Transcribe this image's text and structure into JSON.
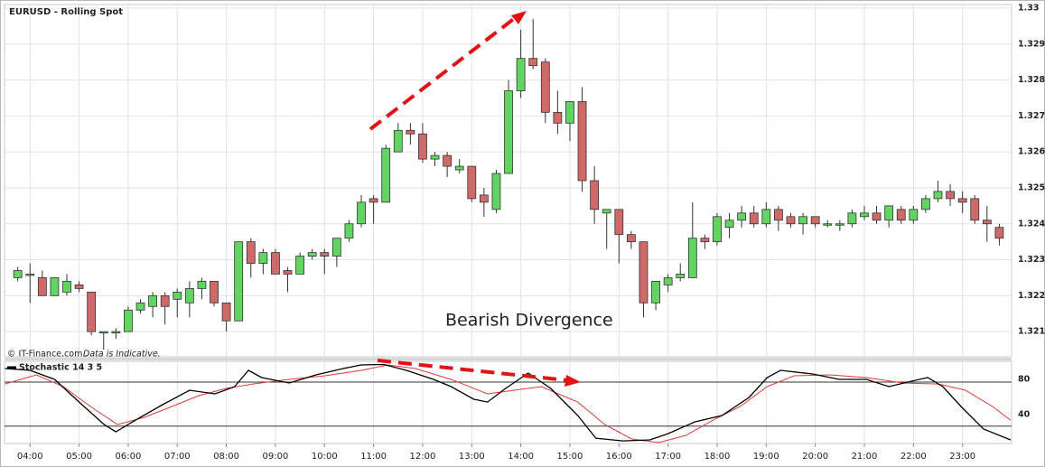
{
  "chart_data": [
    {
      "type": "candlestick",
      "title": "EURUSD - Rolling Spot",
      "annotation": "Bearish Divergence",
      "source": "© IT-Finance.com",
      "note": "Data is Indicative.",
      "up_color": "#62d462",
      "down_color": "#cf6a6a",
      "grid": true,
      "xlim": [
        3.48,
        24.0
      ],
      "ylim": [
        1.3203,
        1.3301
      ],
      "yticks": [
        1.321,
        1.322,
        1.323,
        1.324,
        1.325,
        1.326,
        1.327,
        1.328,
        1.329,
        1.33
      ],
      "x": [
        3.75,
        4,
        4.25,
        4.5,
        4.75,
        5,
        5.25,
        5.5,
        5.75,
        6,
        6.25,
        6.5,
        6.75,
        7,
        7.25,
        7.5,
        7.75,
        8,
        8.25,
        8.5,
        8.75,
        9,
        9.25,
        9.5,
        9.75,
        10,
        10.25,
        10.5,
        10.75,
        11,
        11.25,
        11.5,
        11.75,
        12,
        12.25,
        12.5,
        12.75,
        13,
        13.25,
        13.5,
        13.75,
        14,
        14.25,
        14.5,
        14.75,
        15,
        15.25,
        15.5,
        15.75,
        16,
        16.25,
        16.5,
        16.75,
        17,
        17.25,
        17.5,
        17.75,
        18,
        18.25,
        18.5,
        18.75,
        19,
        19.25,
        19.5,
        19.75,
        20,
        20.25,
        20.5,
        20.75,
        21,
        21.25,
        21.5,
        21.75,
        22,
        22.25,
        22.5,
        22.75,
        23,
        23.25,
        23.5,
        23.75
      ],
      "open": [
        1.3225,
        1.3226,
        1.3225,
        1.322,
        1.3221,
        1.3223,
        1.3221,
        1.321,
        1.321,
        1.321,
        1.3216,
        1.3217,
        1.322,
        1.3219,
        1.3218,
        1.3222,
        1.3224,
        1.3218,
        1.3213,
        1.3235,
        1.3229,
        1.3232,
        1.3227,
        1.3226,
        1.3231,
        1.3232,
        1.3231,
        1.3236,
        1.324,
        1.3247,
        1.3246,
        1.326,
        1.3266,
        1.3265,
        1.3258,
        1.3259,
        1.3255,
        1.3256,
        1.3248,
        1.3244,
        1.3254,
        1.3277,
        1.3286,
        1.3285,
        1.3271,
        1.3268,
        1.3274,
        1.3252,
        1.3243,
        1.3244,
        1.3237,
        1.3235,
        1.3218,
        1.3223,
        1.3225,
        1.3225,
        1.3236,
        1.3235,
        1.3239,
        1.3241,
        1.3243,
        1.324,
        1.3244,
        1.3242,
        1.324,
        1.3242,
        1.324,
        1.324,
        1.324,
        1.3242,
        1.3243,
        1.3241,
        1.3244,
        1.3241,
        1.3244,
        1.3247,
        1.3249,
        1.3247,
        1.3247,
        1.3241,
        1.3239
      ],
      "high": [
        1.3228,
        1.3229,
        1.3227,
        1.3225,
        1.3226,
        1.3224,
        1.3221,
        1.321,
        1.3211,
        1.3217,
        1.3219,
        1.3221,
        1.3221,
        1.3222,
        1.3224,
        1.3225,
        1.3224,
        1.3218,
        1.3235,
        1.3236,
        1.3233,
        1.3233,
        1.3228,
        1.3232,
        1.3233,
        1.3233,
        1.3236,
        1.3241,
        1.3248,
        1.3248,
        1.3262,
        1.3268,
        1.3268,
        1.3268,
        1.326,
        1.326,
        1.3258,
        1.3256,
        1.325,
        1.3255,
        1.328,
        1.3294,
        1.3297,
        1.3286,
        1.3277,
        1.3274,
        1.3278,
        1.3256,
        1.3244,
        1.3244,
        1.3238,
        1.3235,
        1.3224,
        1.3226,
        1.3229,
        1.3246,
        1.3237,
        1.3243,
        1.3243,
        1.3245,
        1.3245,
        1.3246,
        1.3245,
        1.3243,
        1.3243,
        1.3242,
        1.3241,
        1.3241,
        1.3244,
        1.3245,
        1.3245,
        1.3245,
        1.3245,
        1.3245,
        1.3248,
        1.3252,
        1.3251,
        1.3249,
        1.3248,
        1.3245,
        1.324
      ],
      "low": [
        1.3224,
        1.3218,
        1.322,
        1.322,
        1.322,
        1.3221,
        1.3209,
        1.3205,
        1.3208,
        1.321,
        1.3215,
        1.3214,
        1.3212,
        1.3214,
        1.3214,
        1.3219,
        1.3217,
        1.321,
        1.3213,
        1.3225,
        1.3226,
        1.3226,
        1.3221,
        1.3226,
        1.323,
        1.3226,
        1.3228,
        1.3235,
        1.3239,
        1.324,
        1.3246,
        1.326,
        1.3262,
        1.3257,
        1.3256,
        1.3253,
        1.3254,
        1.3246,
        1.3242,
        1.3243,
        1.3254,
        1.3275,
        1.3283,
        1.3268,
        1.3265,
        1.3263,
        1.3249,
        1.324,
        1.3233,
        1.3229,
        1.3233,
        1.3214,
        1.3216,
        1.3221,
        1.3224,
        1.3225,
        1.3233,
        1.3234,
        1.3236,
        1.3239,
        1.3239,
        1.3239,
        1.3238,
        1.3239,
        1.3237,
        1.3239,
        1.3239,
        1.3238,
        1.3239,
        1.3241,
        1.324,
        1.3239,
        1.324,
        1.324,
        1.3243,
        1.3246,
        1.3245,
        1.3243,
        1.324,
        1.3235,
        1.3234
      ],
      "close": [
        1.3227,
        1.3226,
        1.322,
        1.3225,
        1.3224,
        1.3222,
        1.321,
        1.321,
        1.321,
        1.3216,
        1.3218,
        1.322,
        1.3217,
        1.3221,
        1.3222,
        1.3224,
        1.3218,
        1.3213,
        1.3235,
        1.3229,
        1.3232,
        1.3226,
        1.3226,
        1.3231,
        1.3232,
        1.3231,
        1.3236,
        1.324,
        1.3246,
        1.3246,
        1.3261,
        1.3266,
        1.3265,
        1.3258,
        1.3259,
        1.3256,
        1.3256,
        1.3247,
        1.3246,
        1.3254,
        1.3277,
        1.3286,
        1.3284,
        1.3271,
        1.3268,
        1.3274,
        1.3252,
        1.3244,
        1.3244,
        1.3237,
        1.3235,
        1.3218,
        1.3224,
        1.3225,
        1.3226,
        1.3236,
        1.3235,
        1.3242,
        1.3241,
        1.3243,
        1.324,
        1.3244,
        1.3241,
        1.324,
        1.3242,
        1.324,
        1.324,
        1.324,
        1.3243,
        1.3243,
        1.3241,
        1.3245,
        1.3241,
        1.3244,
        1.3247,
        1.3249,
        1.3247,
        1.3246,
        1.3241,
        1.324,
        1.3236
      ]
    },
    {
      "type": "line",
      "title": "Stochastic 14 3 5",
      "grid": true,
      "xlim": [
        3.48,
        24.0
      ],
      "ylim": [
        10.3,
        103.6
      ],
      "yticks": [
        40,
        80
      ],
      "levels": [
        30,
        80
      ],
      "xticks": [
        {
          "value": 4,
          "label": "04:00"
        },
        {
          "value": 5,
          "label": "05:00"
        },
        {
          "value": 6,
          "label": "06:00"
        },
        {
          "value": 7,
          "label": "07:00"
        },
        {
          "value": 8,
          "label": "08:00"
        },
        {
          "value": 9,
          "label": "09:00"
        },
        {
          "value": 10,
          "label": "10:00"
        },
        {
          "value": 11,
          "label": "11:00"
        },
        {
          "value": 12,
          "label": "12:00"
        },
        {
          "value": 13,
          "label": "13:00"
        },
        {
          "value": 14,
          "label": "14:00"
        },
        {
          "value": 15,
          "label": "15:00"
        },
        {
          "value": 16,
          "label": "16:00"
        },
        {
          "value": 17,
          "label": "17:00"
        },
        {
          "value": 18,
          "label": "18:00"
        },
        {
          "value": 19,
          "label": "19:00"
        },
        {
          "value": 20,
          "label": "20:00"
        },
        {
          "value": 21,
          "label": "21:00"
        },
        {
          "value": 22,
          "label": "22:00"
        },
        {
          "value": 23,
          "label": "23:00"
        }
      ],
      "series": [
        {
          "color": "#000000",
          "x": [
            3.49,
            4.0,
            4.5,
            5.0,
            5.51,
            5.75,
            6.15,
            6.7,
            7.25,
            7.77,
            8.17,
            8.45,
            8.72,
            9.28,
            9.83,
            10.38,
            10.75,
            11.21,
            11.67,
            12.22,
            12.58,
            13.04,
            13.32,
            13.69,
            14.15,
            14.61,
            15.16,
            15.53,
            16.08,
            16.63,
            17.0,
            17.55,
            18.1,
            18.65,
            19.02,
            19.29,
            19.94,
            20.49,
            21.04,
            21.5,
            21.96,
            22.29,
            22.6,
            22.97,
            23.43,
            23.98
          ],
          "values": [
            95.4,
            93.3,
            83.1,
            57.4,
            31.8,
            23.6,
            36.9,
            54.4,
            70.8,
            66.7,
            74.9,
            93.3,
            85.1,
            79.0,
            88.2,
            95.4,
            99.5,
            100,
            93.3,
            83.1,
            74.9,
            60.5,
            57.4,
            72.8,
            90.3,
            72.8,
            42.1,
            16.4,
            13.3,
            14.4,
            21.5,
            34.9,
            42.1,
            62.6,
            85.1,
            93.3,
            89.2,
            83.1,
            83.1,
            74.9,
            81.0,
            85.1,
            74.9,
            52.3,
            26.7,
            14.4
          ]
        },
        {
          "color": "#e03a3a",
          "x": [
            3.49,
            4.13,
            4.68,
            5.23,
            5.78,
            6.33,
            6.89,
            7.44,
            7.99,
            8.54,
            9.28,
            10.01,
            10.75,
            11.3,
            11.85,
            12.58,
            13.32,
            13.87,
            14.42,
            15.16,
            15.71,
            16.26,
            16.81,
            17.36,
            17.92,
            18.47,
            19.02,
            19.57,
            20.3,
            21.04,
            21.78,
            22.51,
            23.06,
            23.61,
            23.98
          ],
          "values": [
            77.9,
            88.2,
            74.9,
            52.3,
            31.8,
            40.0,
            52.3,
            64.6,
            72.8,
            77.9,
            83.1,
            87.2,
            93.3,
            99.5,
            95.4,
            83.1,
            66.7,
            70.8,
            74.9,
            57.4,
            31.8,
            15.4,
            11.3,
            19.5,
            36.9,
            52.3,
            74.9,
            87.2,
            88.2,
            85.1,
            79.0,
            77.9,
            70.8,
            52.3,
            36.9
          ]
        }
      ]
    }
  ]
}
